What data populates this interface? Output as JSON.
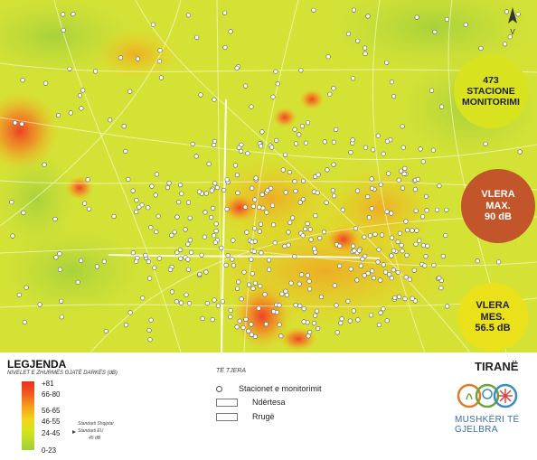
{
  "map": {
    "compass_label": "V",
    "badges": {
      "stations": {
        "line1": "473",
        "line2": "STACIONE",
        "line3": "MONITORIMI",
        "color": "#d9e21f"
      },
      "max": {
        "line1": "VLERA",
        "line2": "MAX.",
        "line3": "90 dB",
        "color": "#c2562a"
      },
      "mean": {
        "line1": "VLERA",
        "line2": "MES.",
        "line3": "56.5 dB",
        "color": "#eae11a"
      }
    },
    "hotspot_color": "#f25a2a",
    "base_color": "#d6e33a"
  },
  "legend": {
    "title": "LEGJENDA",
    "subtitle": "NIVELET E ZHURMËS GJATË DARKËS (dB)",
    "scale": [
      "+81",
      "66-80",
      "56-65",
      "46-55",
      "24-45",
      "0-23"
    ],
    "standards": [
      "Standarti Shqiptar",
      "Standarti EU",
      "45 dB"
    ]
  },
  "others": {
    "title": "TË TJERA",
    "items": [
      "Stacionet e monitorimit",
      "Ndërtesa",
      "Rrugë"
    ]
  },
  "branding": {
    "city": "TIRANË",
    "org": "MUSHKËRI TË GJELBRA",
    "logo_colors": [
      "#e07b2a",
      "#6aa43a",
      "#3a8dc4",
      "#d93a3a"
    ]
  }
}
